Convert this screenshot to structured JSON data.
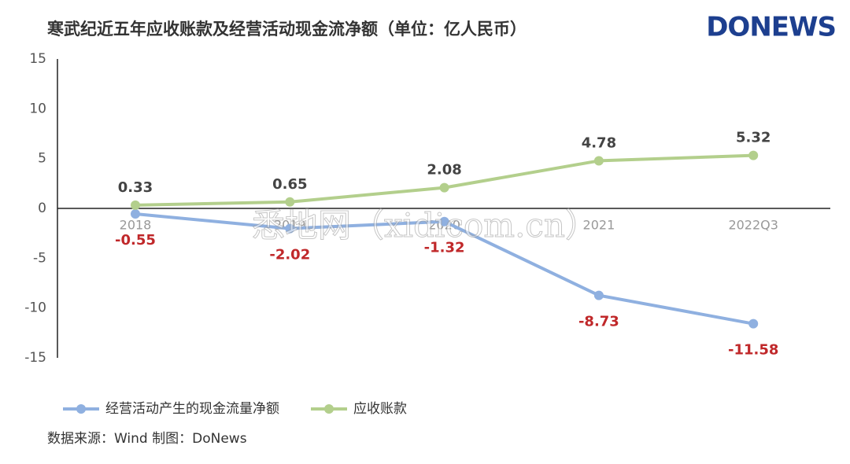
{
  "title": "寒武纪近五年应收账款及经营活动现金流净额（单位：亿人民币）",
  "logo": "DONEWS",
  "watermark": "悉地网（xidicom.cn）",
  "source": "数据来源：Wind   制图：DoNews",
  "chart_data": {
    "type": "line",
    "categories": [
      "2018",
      "2019",
      "2020",
      "2021",
      "2022Q3"
    ],
    "series": [
      {
        "name": "经营活动产生的现金流量净额",
        "color": "#8fb0e0",
        "label_color": "#c0282a",
        "values": [
          -0.55,
          -2.02,
          -1.32,
          -8.73,
          -11.58
        ]
      },
      {
        "name": "应收账款",
        "color": "#b3cf8c",
        "label_color": "#444444",
        "values": [
          0.33,
          0.65,
          2.08,
          4.78,
          5.32
        ]
      }
    ],
    "ylim": [
      -15,
      15
    ],
    "yticks": [
      15,
      10,
      5,
      0,
      -5,
      -10,
      -15
    ]
  }
}
